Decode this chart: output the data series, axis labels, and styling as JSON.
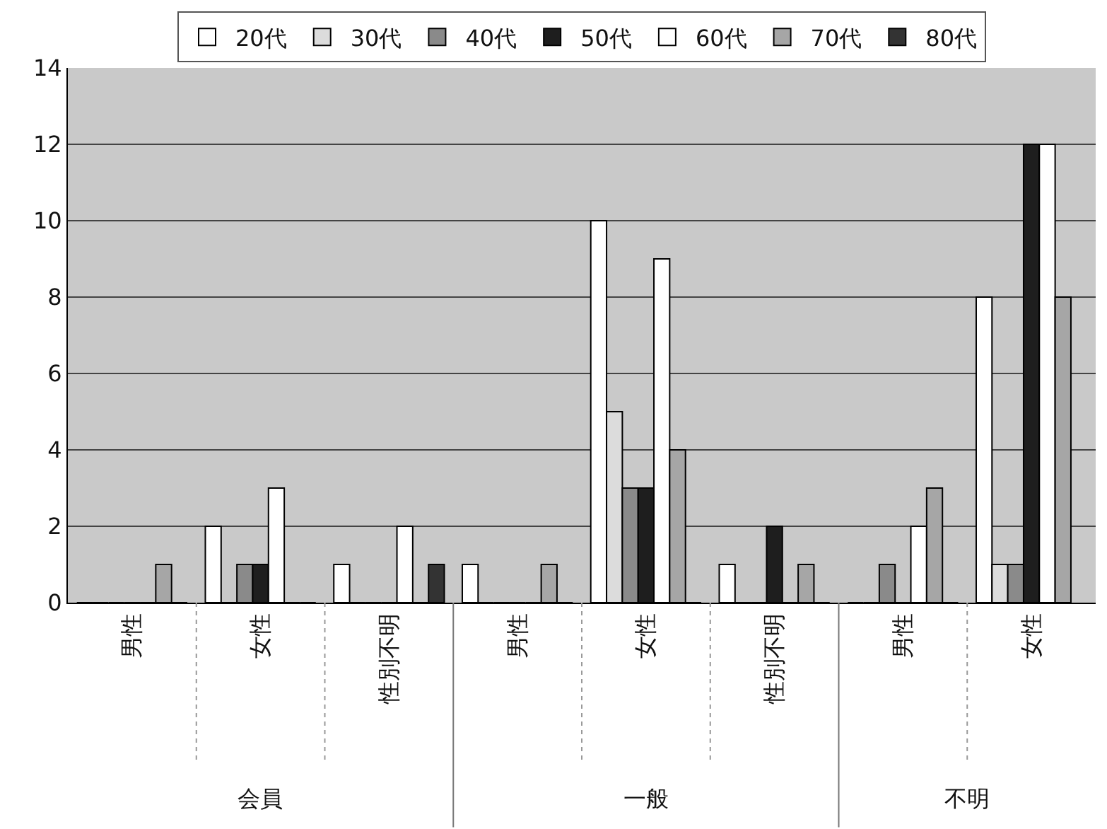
{
  "chart_data": {
    "type": "bar",
    "categories": [
      "男性",
      "女性",
      "性別不明",
      "男性",
      "女性",
      "性別不明",
      "男性",
      "女性"
    ],
    "annotations": [
      "会員",
      "一般",
      "不明"
    ],
    "series": [
      {
        "name": "20代",
        "color": "#ffffff",
        "values": [
          0,
          2,
          1,
          1,
          10,
          1,
          0,
          8
        ]
      },
      {
        "name": "30代",
        "color": "#dcdcdc",
        "values": [
          0,
          0,
          0,
          0,
          5,
          0,
          0,
          1
        ]
      },
      {
        "name": "40代",
        "color": "#8a8a8a",
        "values": [
          0,
          1,
          0,
          0,
          3,
          0,
          1,
          1
        ]
      },
      {
        "name": "50代",
        "color": "#1e1e1e",
        "values": [
          0,
          1,
          0,
          0,
          3,
          2,
          0,
          12
        ]
      },
      {
        "name": "60代",
        "color": "#ffffff",
        "values": [
          0,
          3,
          2,
          0,
          9,
          0,
          2,
          12
        ]
      },
      {
        "name": "70代",
        "color": "#a6a6a6",
        "values": [
          1,
          0,
          0,
          1,
          4,
          1,
          3,
          8
        ]
      },
      {
        "name": "80代",
        "color": "#333333",
        "values": [
          0,
          0,
          1,
          0,
          0,
          0,
          0,
          null
        ]
      }
    ],
    "ylim": [
      0,
      14
    ],
    "yticks": [
      0,
      2,
      4,
      6,
      8,
      10,
      12,
      14
    ],
    "grid": "y",
    "legend": "top"
  }
}
